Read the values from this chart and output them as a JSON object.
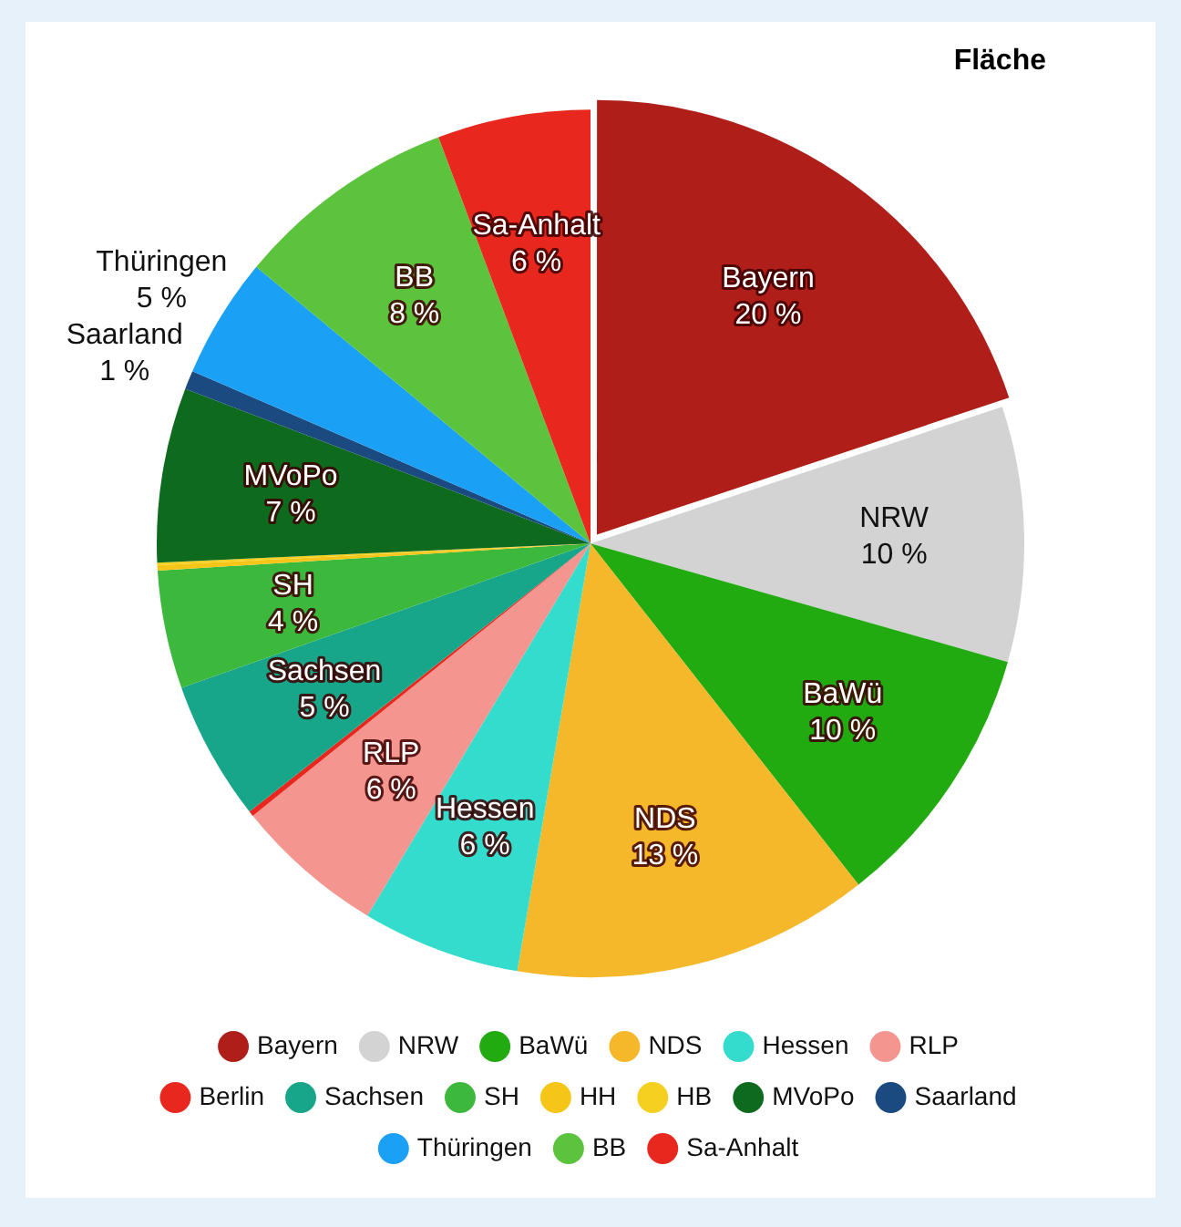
{
  "chart_data": {
    "type": "pie",
    "title": "Fläche",
    "categories": [
      "Bayern",
      "NRW",
      "BaWü",
      "NDS",
      "Hessen",
      "RLP",
      "Berlin",
      "Sachsen",
      "SH",
      "HH",
      "HB",
      "MVoPo",
      "Saarland",
      "Thüringen",
      "BB",
      "Sa-Anhalt"
    ],
    "values": [
      19.9,
      9.5,
      10.0,
      13.3,
      5.9,
      5.6,
      0.2,
      5.2,
      4.4,
      0.2,
      0.1,
      6.5,
      0.7,
      4.5,
      8.3,
      5.7
    ],
    "value_labels": [
      "20 %",
      "10 %",
      "10 %",
      "13 %",
      "6 %",
      "6 %",
      null,
      "5 %",
      "4 %",
      null,
      null,
      "7 %",
      "1 %",
      "5 %",
      "8 %",
      "6 %"
    ],
    "colors": [
      "#b01e1a",
      "#d3d3d3",
      "#22aa11",
      "#f5b82a",
      "#33dccc",
      "#f5958f",
      "#e8281e",
      "#17a68a",
      "#3cb83c",
      "#f5c518",
      "#f5d020",
      "#0e6b1e",
      "#1a4a80",
      "#1aa0f5",
      "#5cc43c",
      "#e8281e"
    ],
    "legend": "bottom"
  }
}
